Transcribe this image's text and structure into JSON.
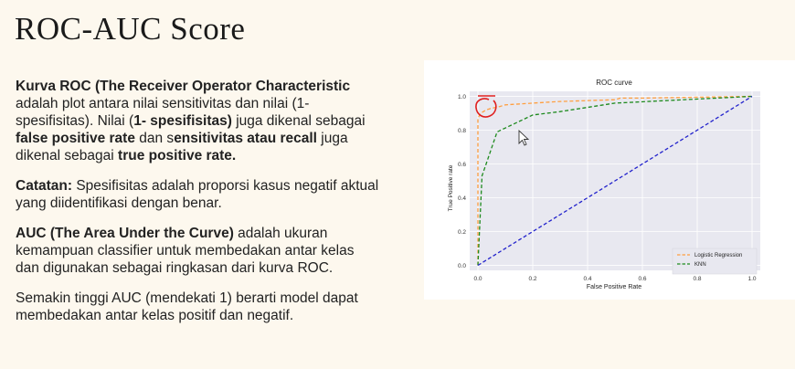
{
  "slide": {
    "title": "ROC-AUC Score"
  },
  "paragraphs": [
    {
      "segments": [
        {
          "text": "Kurva ROC (The Receiver Operator Characteristic",
          "bold": true
        },
        {
          "text": " adalah plot antara nilai sensitivitas dan nilai (1-spesifisitas). Nilai (",
          "bold": false
        },
        {
          "text": "1- spesifisitas)",
          "bold": true
        },
        {
          "text": " juga dikenal sebagai ",
          "bold": false
        },
        {
          "text": "false positive rate",
          "bold": true
        },
        {
          "text": " dan s",
          "bold": false
        },
        {
          "text": "ensitivitas atau recall",
          "bold": true
        },
        {
          "text": " juga dikenal sebagai ",
          "bold": false
        },
        {
          "text": "true positive rate.",
          "bold": true
        }
      ]
    },
    {
      "segments": [
        {
          "text": "Catatan:",
          "bold": true
        },
        {
          "text": " Spesifisitas adalah proporsi kasus negatif aktual yang diidentifikasi dengan benar.",
          "bold": false
        }
      ]
    },
    {
      "segments": [
        {
          "text": "AUC (The Area Under the Curve)",
          "bold": true
        },
        {
          "text": "  adalah ukuran kemampuan classifier untuk membedakan antar kelas dan digunakan sebagai ringkasan dari kurva ROC.",
          "bold": false
        }
      ]
    },
    {
      "segments": [
        {
          "text": "Semakin tinggi AUC (mendekati 1) berarti model dapat membedakan antar kelas positif dan negatif.",
          "bold": false
        }
      ]
    }
  ],
  "chart_data": {
    "type": "line",
    "title": "ROC curve",
    "xlabel": "False Positive Rate",
    "ylabel": "True Positive rate",
    "xlim": [
      -0.03,
      1.03
    ],
    "ylim": [
      -0.03,
      1.03
    ],
    "xticks": [
      0.0,
      0.2,
      0.4,
      0.6,
      0.8,
      1.0
    ],
    "yticks": [
      0.0,
      0.2,
      0.4,
      0.6,
      0.8,
      1.0
    ],
    "tick_labels": [
      "0.0",
      "0.2",
      "0.4",
      "0.6",
      "0.8",
      "1.0"
    ],
    "grid": true,
    "legend_position": "bottom-right",
    "series": [
      {
        "name": "Logistic Regression",
        "color": "#ff9f40",
        "x": [
          0.0,
          0.0,
          0.01,
          0.02,
          0.03,
          0.05,
          0.08,
          0.1,
          0.2,
          0.3,
          0.5,
          0.52,
          0.6,
          1.0
        ],
        "y": [
          0.0,
          0.87,
          0.9,
          0.91,
          0.92,
          0.93,
          0.94,
          0.95,
          0.96,
          0.97,
          0.98,
          0.99,
          0.99,
          1.0
        ]
      },
      {
        "name": "KNN",
        "color": "#1e8a1e",
        "x": [
          0.0,
          0.015,
          0.03,
          0.07,
          0.2,
          0.3,
          0.5,
          1.0
        ],
        "y": [
          0.0,
          0.53,
          0.6,
          0.79,
          0.89,
          0.91,
          0.96,
          1.0
        ]
      },
      {
        "color": "#2222cc",
        "x": [
          0.0,
          1.0
        ],
        "y": [
          0.0,
          1.0
        ]
      }
    ]
  },
  "colors": {
    "background": "#fdf8ee",
    "plot_area": "#e8e8f0",
    "grid": "#ffffff",
    "annotation": "#e02020"
  }
}
